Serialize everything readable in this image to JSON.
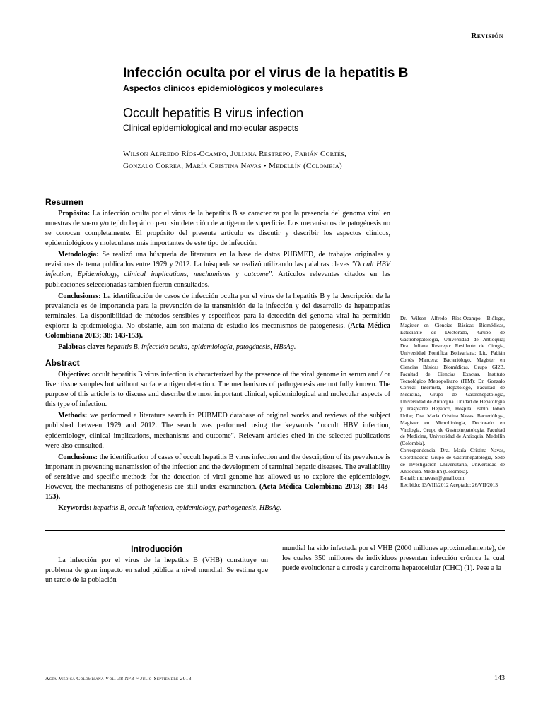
{
  "topLabel": "Revisión",
  "header": {
    "titleEs": "Infección oculta por el virus de la hepatitis B",
    "subtitleEs": "Aspectos clínicos epidemiológicos y moleculares",
    "titleEn": "Occult hepatitis B virus infection",
    "subtitleEn": "Clinical epidemiological and molecular aspects",
    "authorsLine1": "Wilson Alfredo Ríos-Ocampo, Juliana Restrepo, Fabián Cortés,",
    "authorsLine2": "Gonzalo Correa, María Cristina Navas • Medellín (Colombia)"
  },
  "resumen": {
    "heading": "Resumen",
    "p1_label": "Propósito:",
    "p1": " La infección oculta por el virus de la hepatitis B se caracteriza por la presencia del genoma viral en muestras de suero y/o tejido hepático pero sin detección de antígeno de superficie. Los mecanismos de patogénesis no se conocen completamente. El propósito del presente artículo es discutir y describir los aspectos clínicos, epidemiológicos y moleculares más importantes de este tipo de infección.",
    "p2_label": "Metodología:",
    "p2a": " Se realizó una búsqueda de literatura en la base de datos PUBMED, de trabajos originales y revisiones de tema publicados entre 1979 y 2012. La búsqueda se realizó utilizando las palabras claves ",
    "p2_italic": "\"Occult HBV infection, Epidemiology, clinical implications, mechamisms y outcome\".",
    "p2b": " Artículos relevantes citados en las publicaciones seleccionadas también fueron consultados.",
    "p3_label": "Conclusiones:",
    "p3a": " La identificación de casos de infección oculta por el virus de la hepatitis B y la descripción de la prevalencia es de importancia para la prevención de la transmisión de la infección y del desarrollo de hepatopatías terminales. La disponibilidad de métodos sensibles y específicos para la detección del genoma viral ha permitido explorar la epidemiologia. No obstante, aún son materia de estudio los mecanismos de patogénesis. ",
    "p3_bold": "(Acta Médica Colombiana 2013; 38: 143-153).",
    "kw_label": "Palabras clave:",
    "kw": " hepatitis B, infección oculta, epidemiología, patogénesis, HBsAg."
  },
  "abstract": {
    "heading": "Abstract",
    "p1_label": "Objective:",
    "p1": " occult hepatitis B virus infection is characterized by the presence of the viral genome in serum and / or liver tissue samples but without surface antigen detection. The mechanisms of pathogenesis are not fully known. The purpose of this article is to discuss and describe the most important clinical, epidemiological and molecular aspects of this type of infection.",
    "p2_label": "Methods:",
    "p2": " we performed a literature search in PUBMED database of original works and reviews of the subject published between 1979 and 2012. The search was performed using the keywords \"occult HBV infection, epidemiology, clinical implications, mechanisms and outcome\". Relevant articles cited in the selected publications were also consulted.",
    "p3_label": "Conclusions:",
    "p3a": " the identification of cases of occult hepatitis B virus infection and the description of its prevalence is important in preventing transmission of the infection and the development of terminal hepatic diseases. The availability of sensitive and specific methods for the detection of viral genome has allowed us to explore the epidemiology. However, the mechanisms of pathogenesis are still under examination. ",
    "p3_bold": "(Acta Médica Colombiana 2013; 38: 143-153).",
    "kw_label": "Keywords:",
    "kw": " hepatitis B, occult infection, epidemiology, pathogenesis, HBsAg."
  },
  "sidebar": {
    "affiliations": "Dr. Wilson Alfredo Ríos-Ocampo: Biólogo, Magister en Ciencias Básicas Biomédicas, Estudiante de Doctorado, Grupo de Gastrohepatología, Universidad de Antioquia; Dra. Juliana Restrepo: Residente de Cirugía, Universidad Pontifica Bolivariana; Lic. Fabián Cortés Mancera: Bacteriólogo, Magister en Ciencias Básicas Biomédicas. Grupo GI2B, Facultad de Ciencias Exactas, Instituto Tecnológico Metropolitano (ITM); Dr. Gonzalo Correa: Internista, Hepatólogo, Facultad de Medicina, Grupo de Gastrohepatología, Universidad de Antioquia. Unidad de Hepatología y Trasplante Hepático, Hospital Pablo Tobón Uribe; Dra. María Cristina Navas: Bacterióloga, Magister en Microbiología, Doctorado en Virología, Grupo de Gastrohepatología, Facultad de Medicina, Universidad de Antioquia. Medellín (Colombia).",
    "correspondence": "Correspondencia. Dra. María Cristina Navas, Coordinadora Grupo de Gastrohepatología, Sede de Investigación Universitaria, Universidad de Antioquia. Medellín (Colombia).",
    "email": "E-mail: mcnavasn@gmail.com",
    "received": "Recibido: 13/VIII/2012 Aceptado: 26/VII/2013"
  },
  "intro": {
    "heading": "Introducción",
    "col1": "La infección por el virus de la hepatitis B (VHB) constituye un problema de gran impacto en salud pública a nivel mundial. Se estima que un tercio de la población",
    "col2": "mundial ha sido infectada por el VHB (2000 millones aproximadamente), de los cuales 350 millones de individuos presentan infección crónica la cual puede evolucionar a cirrosis y carcinoma hepatocelular (CHC) (1). Pese a la"
  },
  "footer": {
    "journal": "Acta Médica Colombiana Vol. 38  N°3  ~  Julio-Septiembre  2013",
    "page": "143"
  }
}
